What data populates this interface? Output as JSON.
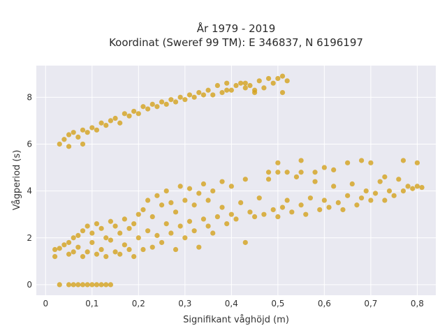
{
  "chart_data": {
    "type": "scatter",
    "title_lines": [
      "År 1979 - 2019",
      "Koordinat (Sweref 99 TM): E 346837, N 6196197"
    ],
    "xlabel": "Signifikant våghöjd (m)",
    "ylabel": "Vågperiod (s)",
    "xlim": [
      -0.02,
      0.84
    ],
    "ylim": [
      -0.45,
      9.35
    ],
    "x_ticks": [
      {
        "value": 0,
        "label": "0"
      },
      {
        "value": 0.1,
        "label": "0,1"
      },
      {
        "value": 0.2,
        "label": "0,2"
      },
      {
        "value": 0.3,
        "label": "0,3"
      },
      {
        "value": 0.4,
        "label": "0,4"
      },
      {
        "value": 0.5,
        "label": "0,5"
      },
      {
        "value": 0.6,
        "label": "0,6"
      },
      {
        "value": 0.7,
        "label": "0,7"
      },
      {
        "value": 0.8,
        "label": "0,8"
      }
    ],
    "y_ticks": [
      {
        "value": 0,
        "label": "0"
      },
      {
        "value": 2,
        "label": "2"
      },
      {
        "value": 4,
        "label": "4"
      },
      {
        "value": 6,
        "label": "6"
      },
      {
        "value": 8,
        "label": "8"
      }
    ],
    "grid": true,
    "legend": "none",
    "marker_color": "#D4A017",
    "background_color": "#E9E9F1",
    "points": [
      [
        0.03,
        0
      ],
      [
        0.05,
        0
      ],
      [
        0.06,
        0
      ],
      [
        0.07,
        0
      ],
      [
        0.08,
        0
      ],
      [
        0.09,
        0
      ],
      [
        0.1,
        0
      ],
      [
        0.11,
        0
      ],
      [
        0.12,
        0
      ],
      [
        0.13,
        0
      ],
      [
        0.14,
        0
      ],
      [
        0.02,
        1.2
      ],
      [
        0.02,
        1.5
      ],
      [
        0.03,
        1.55
      ],
      [
        0.04,
        1.7
      ],
      [
        0.05,
        1.8
      ],
      [
        0.05,
        1.3
      ],
      [
        0.06,
        1.4
      ],
      [
        0.06,
        2.0
      ],
      [
        0.07,
        1.6
      ],
      [
        0.07,
        2.1
      ],
      [
        0.08,
        1.2
      ],
      [
        0.08,
        2.3
      ],
      [
        0.09,
        1.4
      ],
      [
        0.09,
        2.5
      ],
      [
        0.1,
        1.8
      ],
      [
        0.1,
        2.2
      ],
      [
        0.11,
        1.3
      ],
      [
        0.11,
        2.6
      ],
      [
        0.12,
        1.5
      ],
      [
        0.12,
        2.4
      ],
      [
        0.13,
        1.2
      ],
      [
        0.13,
        2.0
      ],
      [
        0.14,
        1.9
      ],
      [
        0.14,
        2.7
      ],
      [
        0.15,
        1.4
      ],
      [
        0.15,
        2.5
      ],
      [
        0.16,
        1.3
      ],
      [
        0.16,
        2.2
      ],
      [
        0.17,
        1.7
      ],
      [
        0.17,
        2.8
      ],
      [
        0.18,
        1.5
      ],
      [
        0.18,
        2.4
      ],
      [
        0.19,
        1.2
      ],
      [
        0.19,
        2.6
      ],
      [
        0.2,
        2.0
      ],
      [
        0.2,
        3.0
      ],
      [
        0.21,
        1.5
      ],
      [
        0.21,
        3.2
      ],
      [
        0.22,
        2.3
      ],
      [
        0.22,
        3.6
      ],
      [
        0.23,
        1.6
      ],
      [
        0.23,
        2.9
      ],
      [
        0.24,
        2.1
      ],
      [
        0.24,
        3.8
      ],
      [
        0.25,
        1.8
      ],
      [
        0.25,
        3.4
      ],
      [
        0.26,
        2.6
      ],
      [
        0.26,
        4.0
      ],
      [
        0.27,
        2.2
      ],
      [
        0.27,
        3.5
      ],
      [
        0.28,
        1.5
      ],
      [
        0.28,
        3.1
      ],
      [
        0.29,
        2.5
      ],
      [
        0.29,
        4.2
      ],
      [
        0.3,
        2.0
      ],
      [
        0.3,
        3.6
      ],
      [
        0.31,
        2.7
      ],
      [
        0.31,
        4.1
      ],
      [
        0.32,
        2.3
      ],
      [
        0.32,
        3.4
      ],
      [
        0.33,
        1.6
      ],
      [
        0.33,
        3.9
      ],
      [
        0.34,
        2.8
      ],
      [
        0.34,
        4.3
      ],
      [
        0.35,
        2.5
      ],
      [
        0.35,
        3.6
      ],
      [
        0.36,
        2.2
      ],
      [
        0.36,
        4.0
      ],
      [
        0.37,
        2.9
      ],
      [
        0.38,
        3.3
      ],
      [
        0.38,
        4.4
      ],
      [
        0.39,
        2.6
      ],
      [
        0.4,
        3.0
      ],
      [
        0.4,
        4.2
      ],
      [
        0.41,
        2.8
      ],
      [
        0.42,
        3.5
      ],
      [
        0.43,
        1.8
      ],
      [
        0.43,
        4.5
      ],
      [
        0.44,
        3.1
      ],
      [
        0.45,
        2.9
      ],
      [
        0.46,
        3.7
      ],
      [
        0.47,
        3.0
      ],
      [
        0.48,
        4.5
      ],
      [
        0.49,
        3.2
      ],
      [
        0.5,
        2.9
      ],
      [
        0.5,
        4.8
      ],
      [
        0.51,
        3.3
      ],
      [
        0.52,
        3.6
      ],
      [
        0.53,
        3.1
      ],
      [
        0.54,
        4.6
      ],
      [
        0.55,
        3.4
      ],
      [
        0.56,
        3.0
      ],
      [
        0.57,
        3.7
      ],
      [
        0.58,
        4.4
      ],
      [
        0.59,
        3.2
      ],
      [
        0.6,
        3.6
      ],
      [
        0.61,
        3.3
      ],
      [
        0.62,
        4.2
      ],
      [
        0.63,
        3.5
      ],
      [
        0.64,
        3.2
      ],
      [
        0.65,
        3.8
      ],
      [
        0.66,
        4.3
      ],
      [
        0.67,
        3.4
      ],
      [
        0.68,
        3.7
      ],
      [
        0.69,
        4.0
      ],
      [
        0.7,
        3.6
      ],
      [
        0.71,
        3.9
      ],
      [
        0.72,
        4.4
      ],
      [
        0.73,
        3.6
      ],
      [
        0.74,
        4.0
      ],
      [
        0.75,
        3.8
      ],
      [
        0.76,
        4.5
      ],
      [
        0.77,
        4.0
      ],
      [
        0.78,
        4.2
      ],
      [
        0.79,
        4.1
      ],
      [
        0.8,
        4.2
      ],
      [
        0.81,
        4.15
      ],
      [
        0.48,
        4.8
      ],
      [
        0.52,
        4.8
      ],
      [
        0.55,
        4.8
      ],
      [
        0.58,
        4.8
      ],
      [
        0.6,
        5.0
      ],
      [
        0.62,
        4.9
      ],
      [
        0.65,
        5.2
      ],
      [
        0.68,
        5.3
      ],
      [
        0.7,
        5.2
      ],
      [
        0.73,
        4.6
      ],
      [
        0.77,
        5.3
      ],
      [
        0.8,
        5.2
      ],
      [
        0.5,
        5.2
      ],
      [
        0.55,
        5.3
      ],
      [
        0.03,
        6.0
      ],
      [
        0.04,
        6.2
      ],
      [
        0.05,
        5.9
      ],
      [
        0.05,
        6.4
      ],
      [
        0.06,
        6.5
      ],
      [
        0.07,
        6.3
      ],
      [
        0.08,
        6.6
      ],
      [
        0.08,
        6.0
      ],
      [
        0.09,
        6.5
      ],
      [
        0.1,
        6.7
      ],
      [
        0.11,
        6.6
      ],
      [
        0.12,
        6.9
      ],
      [
        0.13,
        6.8
      ],
      [
        0.14,
        7.0
      ],
      [
        0.15,
        7.1
      ],
      [
        0.16,
        6.9
      ],
      [
        0.17,
        7.3
      ],
      [
        0.18,
        7.2
      ],
      [
        0.19,
        7.4
      ],
      [
        0.2,
        7.3
      ],
      [
        0.21,
        7.6
      ],
      [
        0.22,
        7.5
      ],
      [
        0.23,
        7.7
      ],
      [
        0.24,
        7.6
      ],
      [
        0.25,
        7.8
      ],
      [
        0.26,
        7.7
      ],
      [
        0.27,
        7.9
      ],
      [
        0.28,
        7.8
      ],
      [
        0.29,
        8.0
      ],
      [
        0.3,
        7.9
      ],
      [
        0.31,
        8.1
      ],
      [
        0.32,
        8.0
      ],
      [
        0.33,
        8.2
      ],
      [
        0.34,
        8.1
      ],
      [
        0.35,
        8.3
      ],
      [
        0.36,
        8.1
      ],
      [
        0.37,
        8.5
      ],
      [
        0.38,
        8.2
      ],
      [
        0.39,
        8.6
      ],
      [
        0.4,
        8.3
      ],
      [
        0.41,
        8.5
      ],
      [
        0.42,
        8.6
      ],
      [
        0.43,
        8.4
      ],
      [
        0.44,
        8.5
      ],
      [
        0.45,
        8.3
      ],
      [
        0.46,
        8.7
      ],
      [
        0.47,
        8.4
      ],
      [
        0.48,
        8.8
      ],
      [
        0.49,
        8.6
      ],
      [
        0.5,
        8.8
      ],
      [
        0.51,
        8.9
      ],
      [
        0.52,
        8.7
      ],
      [
        0.45,
        8.2
      ],
      [
        0.51,
        8.2
      ],
      [
        0.39,
        8.3
      ],
      [
        0.43,
        8.6
      ]
    ]
  }
}
